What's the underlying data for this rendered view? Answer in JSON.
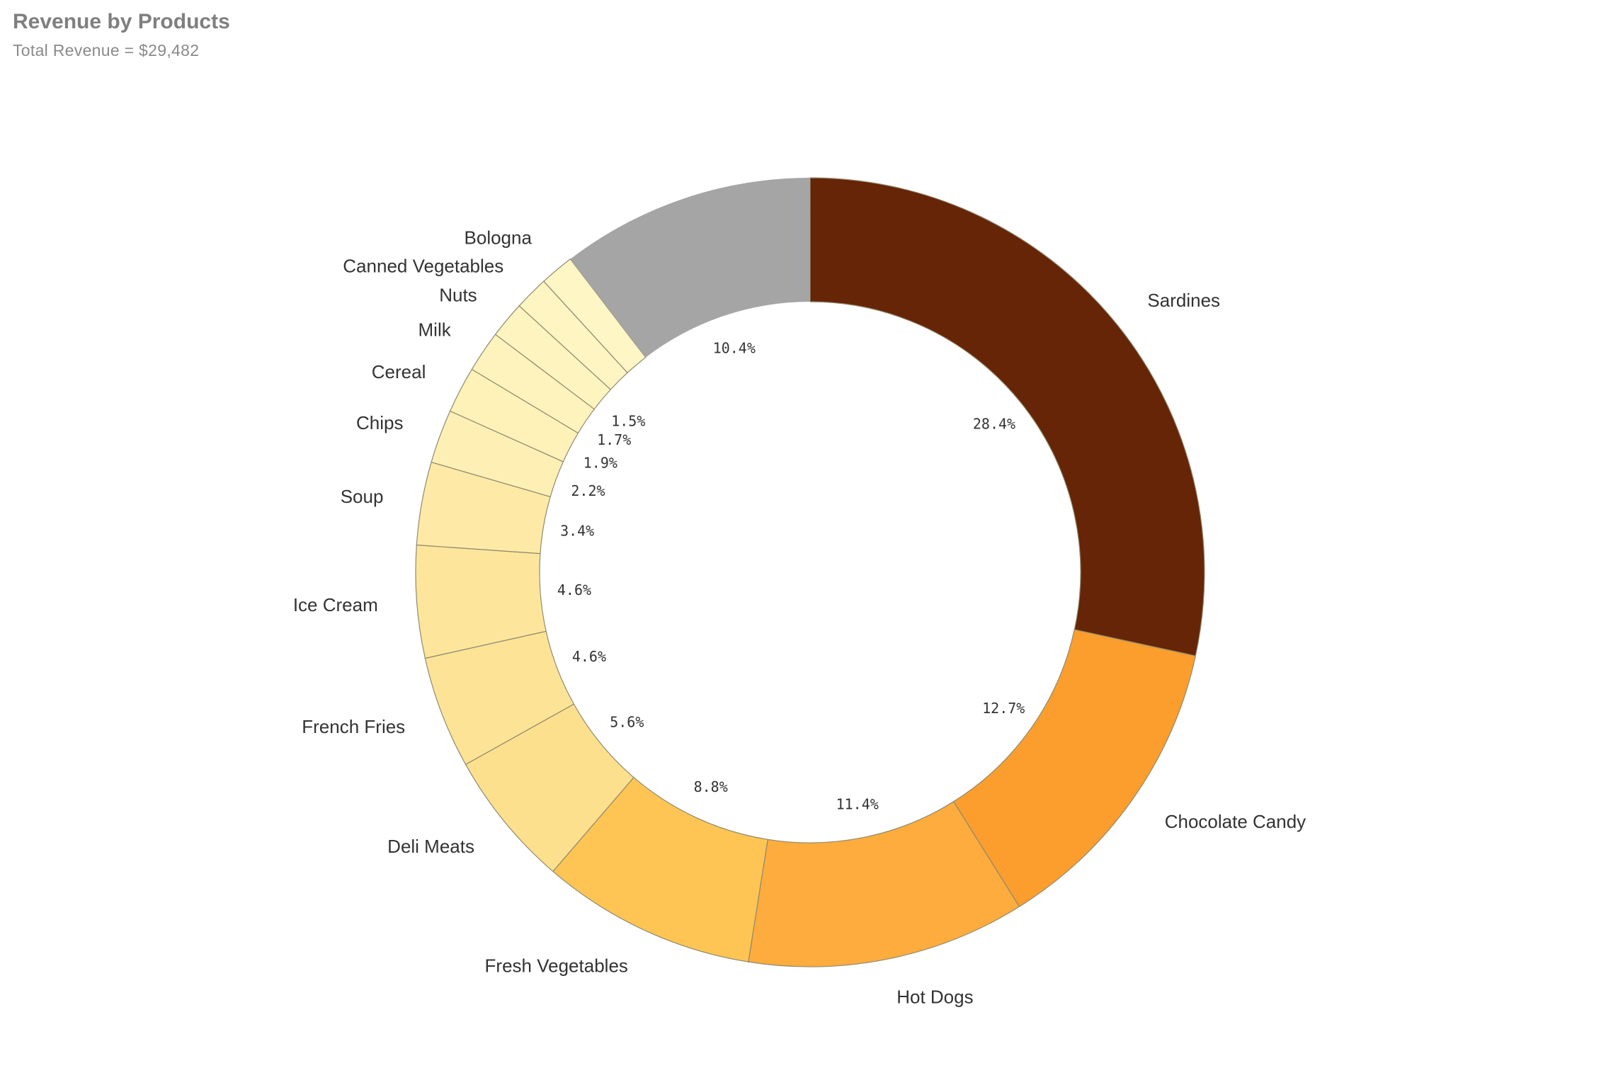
{
  "title": "Revenue by Products",
  "subtitle": "Total Revenue = $29,482",
  "chart_data": {
    "type": "pie",
    "variant": "donut",
    "title": "Revenue by Products",
    "subtitle": "Total Revenue = $29,482",
    "unit": "percent of total revenue",
    "slices": [
      {
        "name": "Sardines",
        "value": 28.4,
        "label": "28.4%",
        "color": "#662506"
      },
      {
        "name": "Chocolate Candy",
        "value": 12.7,
        "label": "12.7%",
        "color": "#fb9e2d"
      },
      {
        "name": "Hot Dogs",
        "value": 11.4,
        "label": "11.4%",
        "color": "#fdac3d"
      },
      {
        "name": "Fresh Vegetables",
        "value": 8.8,
        "label": "8.8%",
        "color": "#fec554"
      },
      {
        "name": "Deli Meats",
        "value": 5.6,
        "label": "5.6%",
        "color": "#fde08d"
      },
      {
        "name": "French Fries",
        "value": 4.6,
        "label": "4.6%",
        "color": "#fde396"
      },
      {
        "name": "Ice Cream",
        "value": 4.6,
        "label": "4.6%",
        "color": "#fde69c"
      },
      {
        "name": "Soup",
        "value": 3.4,
        "label": "3.4%",
        "color": "#feeaa6"
      },
      {
        "name": "Chips",
        "value": 2.2,
        "label": "2.2%",
        "color": "#fef0b4"
      },
      {
        "name": "Cereal",
        "value": 1.9,
        "label": "1.9%",
        "color": "#fef2b8"
      },
      {
        "name": "Milk",
        "value": 1.7,
        "label": "1.7%",
        "color": "#fef3bc"
      },
      {
        "name": "Nuts",
        "value": 1.5,
        "label": "1.5%",
        "color": "#fef4bf"
      },
      {
        "name": "Canned Vegetables",
        "value": 1.4,
        "label": "",
        "color": "#fef5c2"
      },
      {
        "name": "Bologna",
        "value": 1.4,
        "label": "",
        "color": "#fef6c5"
      },
      {
        "name": "",
        "value": 10.4,
        "label": "10.4%",
        "color": "#a5a5a5"
      }
    ],
    "legend": "none (labels outside slices)"
  }
}
